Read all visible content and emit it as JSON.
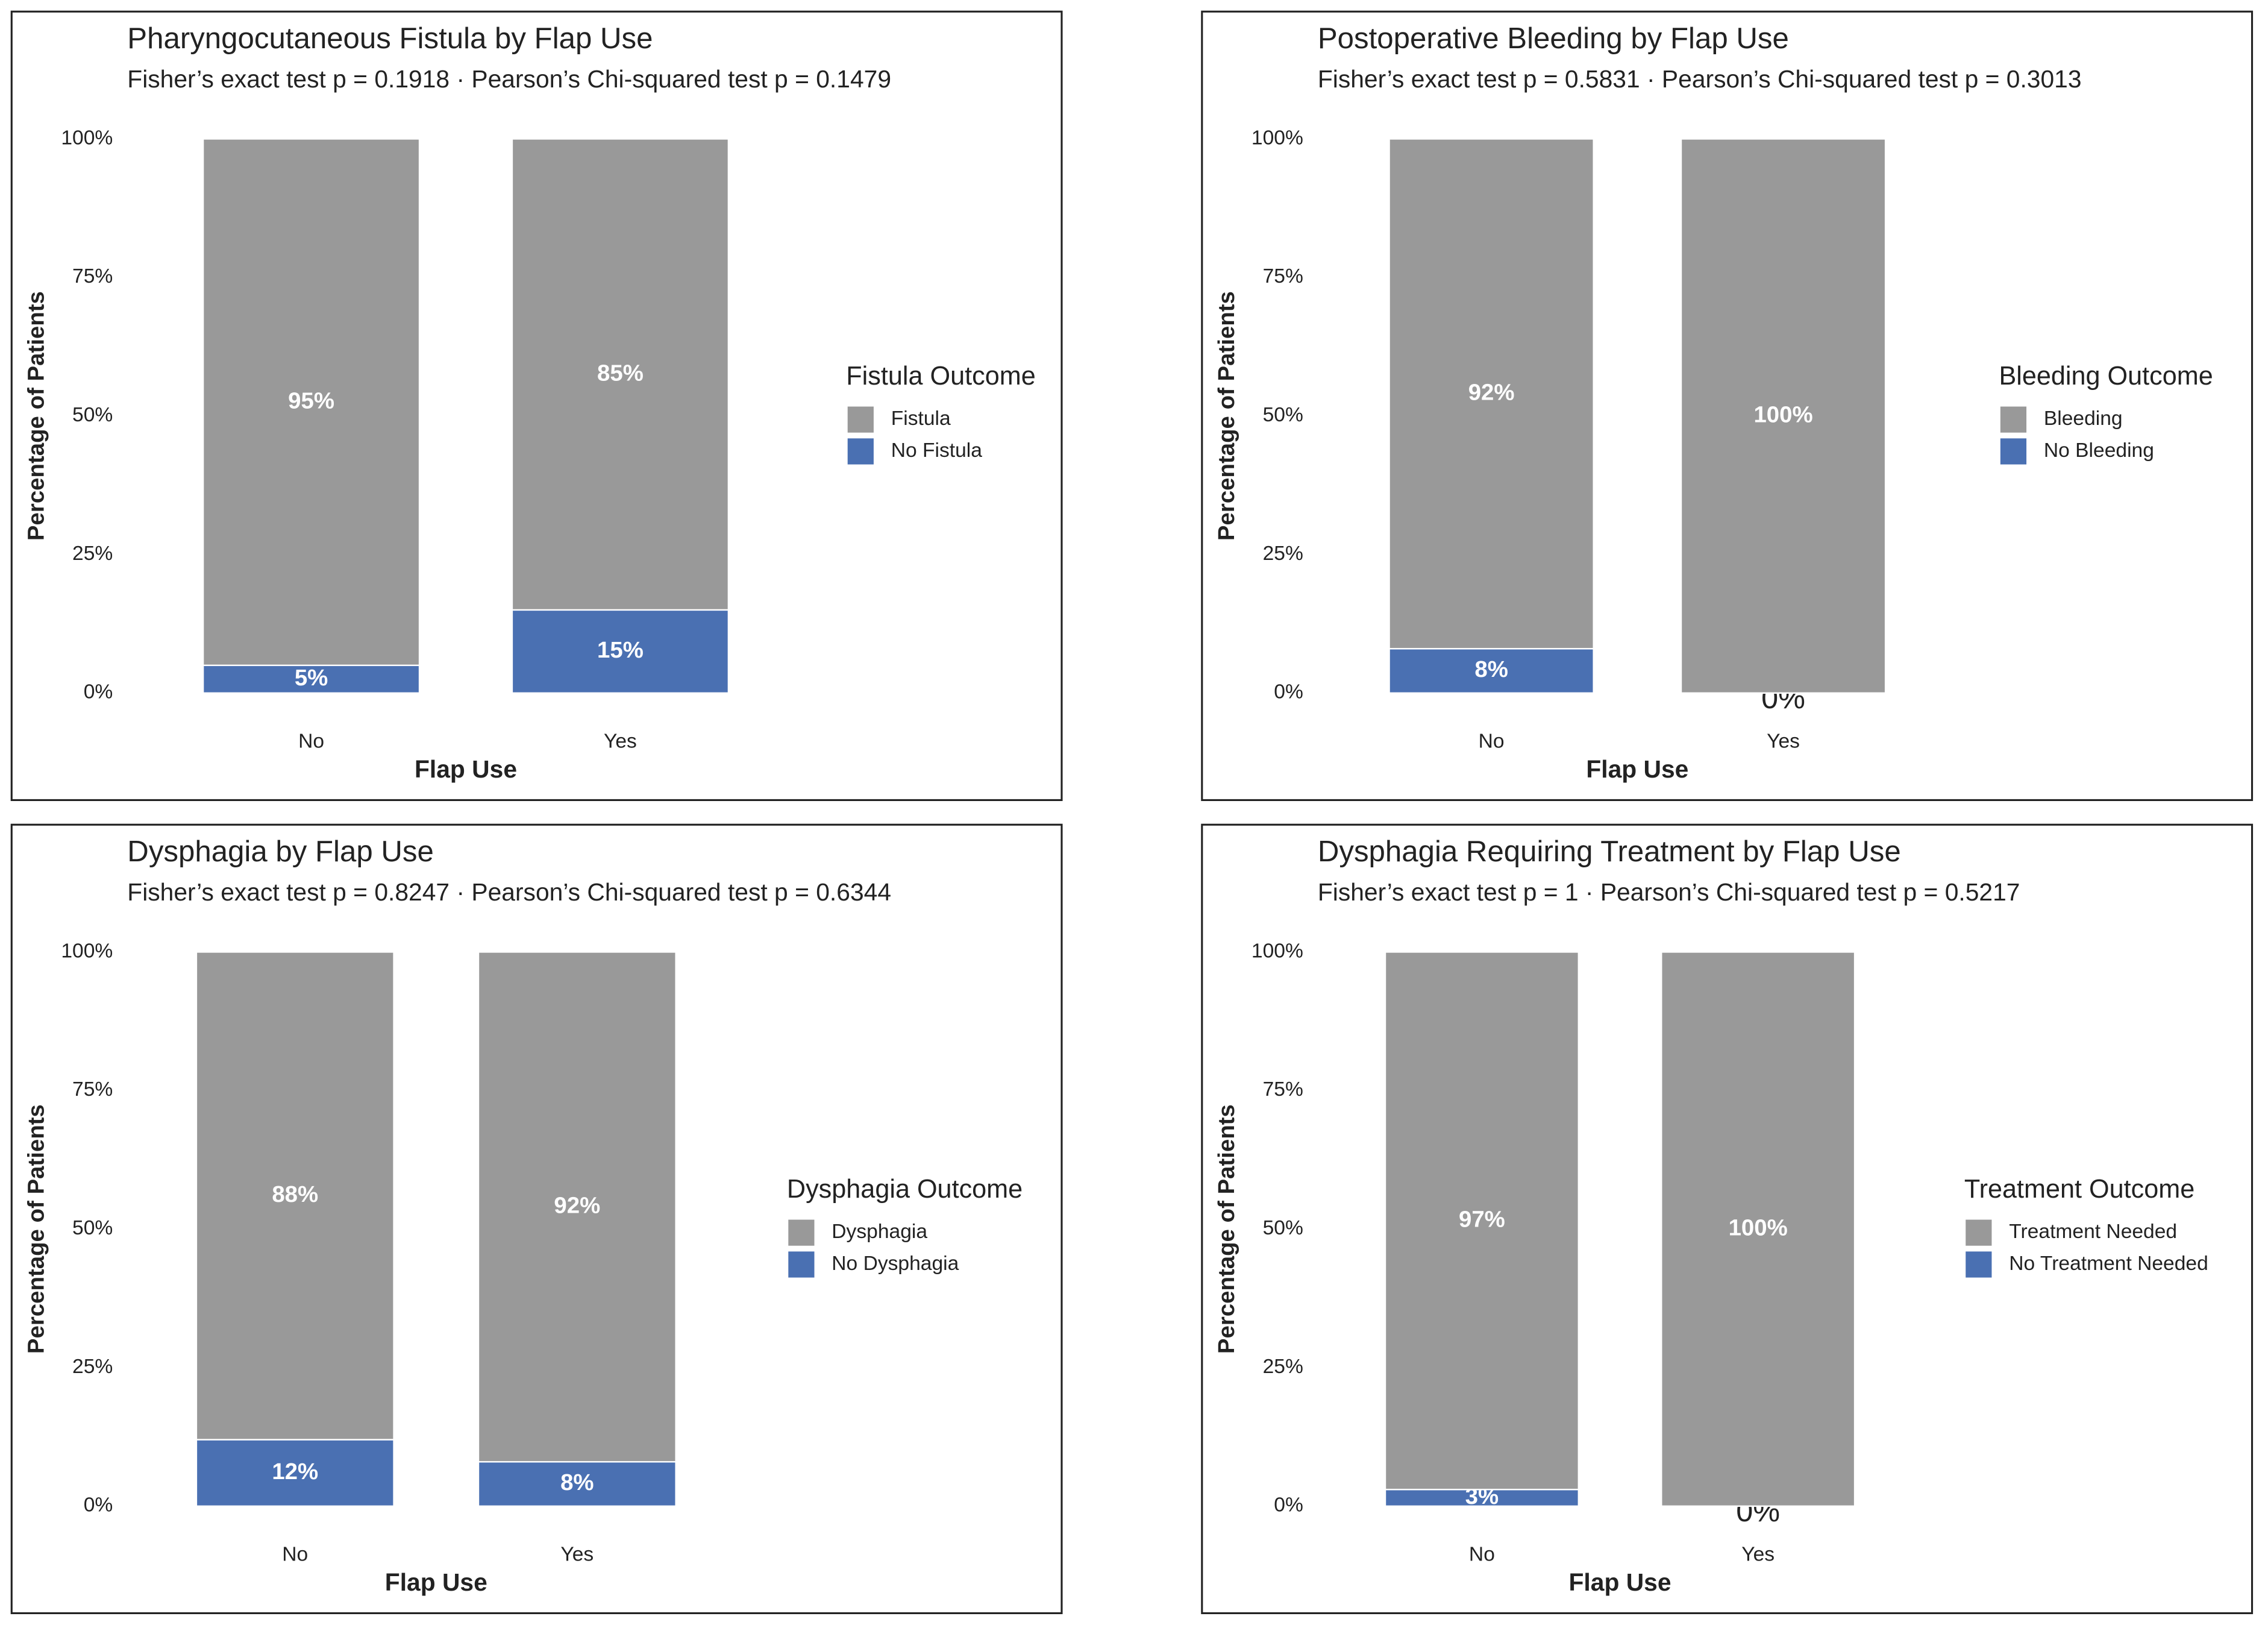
{
  "chart_data": [
    {
      "type": "bar",
      "stacked": true,
      "title": "Pharyngocutaneous Fistula by Flap Use",
      "subtitle": "Fisher’s exact test p = 0.1918 · Pearson’s Chi-squared test p = 0.1479",
      "x_label": "Flap Use",
      "y_label": "Percentage of Patients",
      "legend_title": "Fistula Outcome",
      "legend": "right",
      "categories": [
        "No",
        "Yes"
      ],
      "series": [
        {
          "name": "Fistula",
          "color": "#999999",
          "values": [
            95,
            85
          ],
          "value_labels": [
            "95%",
            "85%"
          ]
        },
        {
          "name": "No Fistula",
          "color": "#4a70b2",
          "values": [
            5,
            15
          ],
          "value_labels": [
            "5%",
            "15%"
          ]
        }
      ],
      "ylim": [
        0,
        100
      ],
      "yticks": [
        {
          "value": 0,
          "label": "0%"
        },
        {
          "value": 25,
          "label": "25%"
        },
        {
          "value": 50,
          "label": "50%"
        },
        {
          "value": 75,
          "label": "75%"
        },
        {
          "value": 100,
          "label": "100%"
        }
      ]
    },
    {
      "type": "bar",
      "stacked": true,
      "title": "Postoperative Bleeding by Flap Use",
      "subtitle": "Fisher’s exact test p = 0.5831 · Pearson’s Chi-squared test p = 0.3013",
      "x_label": "Flap Use",
      "y_label": "Percentage of Patients",
      "legend_title": "Bleeding Outcome",
      "legend": "right",
      "categories": [
        "No",
        "Yes"
      ],
      "series": [
        {
          "name": "Bleeding",
          "color": "#999999",
          "values": [
            92,
            100
          ],
          "value_labels": [
            "92%",
            "100%"
          ]
        },
        {
          "name": "No Bleeding",
          "color": "#4a70b2",
          "values": [
            8,
            0
          ],
          "value_labels": [
            "8%",
            "0%"
          ]
        }
      ],
      "ylim": [
        0,
        100
      ],
      "yticks": [
        {
          "value": 0,
          "label": "0%"
        },
        {
          "value": 25,
          "label": "25%"
        },
        {
          "value": 50,
          "label": "50%"
        },
        {
          "value": 75,
          "label": "75%"
        },
        {
          "value": 100,
          "label": "100%"
        }
      ]
    },
    {
      "type": "bar",
      "stacked": true,
      "title": "Dysphagia by Flap Use",
      "subtitle": "Fisher’s exact test p = 0.8247 · Pearson’s Chi-squared test p = 0.6344",
      "x_label": "Flap Use",
      "y_label": "Percentage of Patients",
      "legend_title": "Dysphagia Outcome",
      "legend": "right",
      "categories": [
        "No",
        "Yes"
      ],
      "series": [
        {
          "name": "Dysphagia",
          "color": "#999999",
          "values": [
            88,
            92
          ],
          "value_labels": [
            "88%",
            "92%"
          ]
        },
        {
          "name": "No Dysphagia",
          "color": "#4a70b2",
          "values": [
            12,
            8
          ],
          "value_labels": [
            "12%",
            "8%"
          ]
        }
      ],
      "ylim": [
        0,
        100
      ],
      "yticks": [
        {
          "value": 0,
          "label": "0%"
        },
        {
          "value": 25,
          "label": "25%"
        },
        {
          "value": 50,
          "label": "50%"
        },
        {
          "value": 75,
          "label": "75%"
        },
        {
          "value": 100,
          "label": "100%"
        }
      ]
    },
    {
      "type": "bar",
      "stacked": true,
      "title": "Dysphagia Requiring Treatment by Flap Use",
      "subtitle": "Fisher’s exact test p = 1 · Pearson’s Chi-squared test p = 0.5217",
      "x_label": "Flap Use",
      "y_label": "Percentage of Patients",
      "legend_title": "Treatment Outcome",
      "legend": "right",
      "categories": [
        "No",
        "Yes"
      ],
      "series": [
        {
          "name": "Treatment Needed",
          "color": "#999999",
          "values": [
            97,
            100
          ],
          "value_labels": [
            "97%",
            "100%"
          ]
        },
        {
          "name": "No Treatment Needed",
          "color": "#4a70b2",
          "values": [
            3,
            0
          ],
          "value_labels": [
            "3%",
            "0%"
          ]
        }
      ],
      "ylim": [
        0,
        100
      ],
      "yticks": [
        {
          "value": 0,
          "label": "0%"
        },
        {
          "value": 25,
          "label": "25%"
        },
        {
          "value": 50,
          "label": "50%"
        },
        {
          "value": 75,
          "label": "75%"
        },
        {
          "value": 100,
          "label": "100%"
        }
      ]
    }
  ]
}
